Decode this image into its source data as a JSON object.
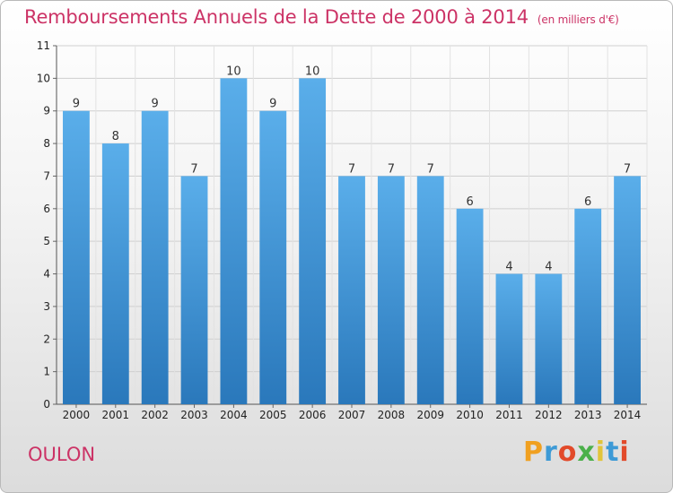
{
  "chart_data": {
    "type": "bar",
    "title": "Remboursements Annuels de la Dette de 2000 à 2014",
    "unit_note": "(en milliers d'€)",
    "categories": [
      "2000",
      "2001",
      "2002",
      "2003",
      "2004",
      "2005",
      "2006",
      "2007",
      "2008",
      "2009",
      "2010",
      "2011",
      "2012",
      "2013",
      "2014"
    ],
    "values": [
      9,
      8,
      9,
      7,
      10,
      9,
      10,
      7,
      7,
      7,
      6,
      4,
      4,
      6,
      7
    ],
    "ylim": [
      0,
      11
    ],
    "yticks": [
      0,
      1,
      2,
      3,
      4,
      5,
      6,
      7,
      8,
      9,
      10,
      11
    ],
    "grid": true,
    "bar_color_top": "#5aaeea",
    "bar_color_bottom": "#2a78bb"
  },
  "footer": {
    "commune": "OULON",
    "logo_letters": [
      "P",
      "r",
      "o",
      "x",
      "i",
      "t",
      "i"
    ],
    "logo_colors": [
      "#f0a020",
      "#3d9ad6",
      "#e24a2a",
      "#4bb04a",
      "#e2c43a",
      "#3d9ad6",
      "#e24a2a"
    ]
  }
}
